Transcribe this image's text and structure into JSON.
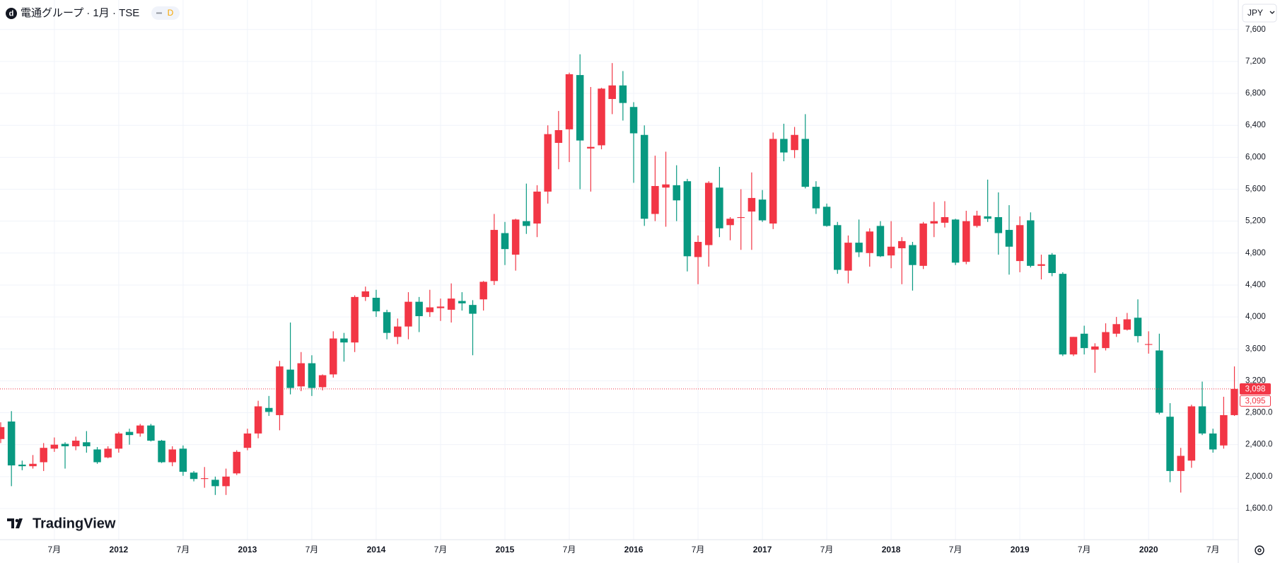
{
  "header": {
    "symbol": "電通グループ · 1月 · TSE",
    "badge": "D",
    "currency": "JPY"
  },
  "brand": "TradingView",
  "chart_data": {
    "type": "candlestick",
    "categories": [
      null,
      null,
      null,
      null,
      null,
      "7月",
      null,
      null,
      null,
      null,
      null,
      "2012",
      null,
      null,
      null,
      null,
      null,
      "7月",
      null,
      null,
      null,
      null,
      null,
      "2013",
      null,
      null,
      null,
      null,
      null,
      "7月",
      null,
      null,
      null,
      null,
      null,
      "2014",
      null,
      null,
      null,
      null,
      null,
      "7月",
      null,
      null,
      null,
      null,
      null,
      "2015",
      null,
      null,
      null,
      null,
      null,
      "7月",
      null,
      null,
      null,
      null,
      null,
      "2016",
      null,
      null,
      null,
      null,
      null,
      "7月",
      null,
      null,
      null,
      null,
      null,
      "2017",
      null,
      null,
      null,
      null,
      null,
      "7月",
      null,
      null,
      null,
      null,
      null,
      "2018",
      null,
      null,
      null,
      null,
      null,
      "7月",
      null,
      null,
      null,
      null,
      null,
      "2019",
      null,
      null,
      null,
      null,
      null,
      "7月",
      null,
      null,
      null,
      null,
      null,
      "2020",
      null,
      null,
      null,
      null,
      null,
      "7月",
      null,
      null
    ],
    "open": [
      2470,
      2690,
      2150,
      2130,
      2180,
      2350,
      2410,
      2380,
      2430,
      2340,
      2240,
      2350,
      2560,
      2540,
      2640,
      2450,
      2180,
      2350,
      2050,
      1970,
      1960,
      1880,
      2040,
      2360,
      2540,
      2860,
      2770,
      3340,
      3130,
      3420,
      3120,
      3280,
      3730,
      3680,
      4250,
      4240,
      4060,
      3750,
      3880,
      4190,
      4060,
      4110,
      4090,
      4200,
      4150,
      4220,
      4450,
      5050,
      4780,
      5200,
      5170,
      5570,
      6180,
      6350,
      7030,
      6110,
      6150,
      6730,
      6900,
      6630,
      6280,
      5290,
      5620,
      5650,
      5700,
      4750,
      4900,
      5620,
      5150,
      5240,
      5320,
      5470,
      5170,
      6230,
      6090,
      6230,
      5630,
      5380,
      5150,
      4580,
      4930,
      4800,
      5140,
      4770,
      4860,
      4900,
      4640,
      5170,
      5180,
      5220,
      4690,
      5140,
      5260,
      5250,
      5090,
      4700,
      5210,
      4640,
      4780,
      4540,
      3530,
      3790,
      3590,
      3610,
      3790,
      3840,
      3990,
      3650,
      3580,
      2750,
      2070,
      2200,
      2880,
      2540,
      2390,
      2770
    ],
    "high": [
      2680,
      2820,
      2200,
      2270,
      2420,
      2490,
      2430,
      2500,
      2570,
      2370,
      2380,
      2560,
      2600,
      2660,
      2660,
      2460,
      2380,
      2390,
      2070,
      2120,
      2000,
      2100,
      2330,
      2600,
      2950,
      3010,
      3450,
      3930,
      3560,
      3520,
      3280,
      3820,
      3800,
      4270,
      4380,
      4340,
      4090,
      3980,
      4310,
      4250,
      4340,
      4230,
      4420,
      4310,
      4210,
      4450,
      5290,
      5190,
      5230,
      5670,
      5650,
      6400,
      6580,
      7060,
      7290,
      6880,
      6870,
      7180,
      7080,
      6690,
      6400,
      6020,
      6070,
      5900,
      5730,
      5020,
      5700,
      5880,
      5250,
      5600,
      5810,
      5590,
      6310,
      6420,
      6380,
      6540,
      5700,
      5420,
      5190,
      5020,
      5220,
      5110,
      5200,
      5200,
      5000,
      4940,
      5190,
      5440,
      5450,
      5230,
      5330,
      5330,
      5720,
      5560,
      5400,
      5260,
      5310,
      4780,
      4800,
      4560,
      3750,
      3890,
      3670,
      3920,
      4000,
      4050,
      4220,
      3820,
      3790,
      2920,
      2360,
      2900,
      3190,
      2600,
      3000,
      3380
    ],
    "low": [
      2420,
      1880,
      2080,
      2100,
      2070,
      2310,
      2100,
      2330,
      2300,
      2160,
      2230,
      2300,
      2400,
      2500,
      2440,
      2170,
      2130,
      2010,
      1940,
      1860,
      1770,
      1770,
      2020,
      2330,
      2480,
      2760,
      2580,
      3030,
      3070,
      3010,
      3080,
      3240,
      3440,
      3560,
      4200,
      4000,
      3720,
      3660,
      3720,
      3810,
      4000,
      3950,
      3930,
      4080,
      3520,
      4080,
      4400,
      4650,
      4580,
      5040,
      5000,
      5420,
      5850,
      5940,
      5600,
      5570,
      6100,
      6540,
      6460,
      5680,
      5140,
      5200,
      5130,
      5200,
      4570,
      4410,
      4630,
      5000,
      4960,
      4840,
      4840,
      5190,
      5100,
      5950,
      5990,
      5610,
      5290,
      5130,
      4540,
      4420,
      4750,
      4630,
      4750,
      4610,
      4410,
      4330,
      4600,
      5000,
      5120,
      4650,
      4660,
      5120,
      5190,
      4780,
      4530,
      4560,
      4620,
      4470,
      4510,
      3510,
      3510,
      3530,
      3300,
      3580,
      3750,
      3830,
      3680,
      3540,
      2780,
      1930,
      1800,
      2110,
      2520,
      2300,
      2350,
      2760
    ],
    "close": [
      2620,
      2140,
      2130,
      2160,
      2360,
      2400,
      2380,
      2450,
      2380,
      2180,
      2350,
      2540,
      2520,
      2640,
      2450,
      2180,
      2340,
      2060,
      1970,
      1980,
      1880,
      2000,
      2310,
      2540,
      2880,
      2810,
      3380,
      3110,
      3420,
      3110,
      3270,
      3730,
      3680,
      4250,
      4320,
      4070,
      3800,
      3880,
      4190,
      4010,
      4120,
      4130,
      4230,
      4170,
      4040,
      4440,
      5090,
      4850,
      5220,
      5140,
      5570,
      6290,
      6340,
      7040,
      6210,
      6130,
      6860,
      6900,
      6680,
      6300,
      5230,
      5640,
      5660,
      5460,
      4760,
      4940,
      5680,
      5110,
      5230,
      5250,
      5490,
      5210,
      6230,
      6060,
      6280,
      5630,
      5360,
      5140,
      4590,
      4930,
      4810,
      5070,
      4760,
      4880,
      4950,
      4650,
      5170,
      5200,
      5250,
      4680,
      5200,
      5270,
      5230,
      5050,
      4880,
      5150,
      4640,
      4660,
      4550,
      3530,
      3750,
      3610,
      3630,
      3810,
      3910,
      3970,
      3760,
      3660,
      2800,
      2070,
      2260,
      2880,
      2540,
      2340,
      2770,
      3098
    ],
    "up_color": "#f23645",
    "down_color": "#089981",
    "ylim": [
      1210,
      7970
    ],
    "yticks": [
      {
        "value": 7600,
        "label": "7,600"
      },
      {
        "value": 7200,
        "label": "7,200"
      },
      {
        "value": 6800,
        "label": "6,800"
      },
      {
        "value": 6400,
        "label": "6,400"
      },
      {
        "value": 6000,
        "label": "6,000"
      },
      {
        "value": 5600,
        "label": "5,600"
      },
      {
        "value": 5200,
        "label": "5,200"
      },
      {
        "value": 4800,
        "label": "4,800"
      },
      {
        "value": 4400,
        "label": "4,400"
      },
      {
        "value": 4000,
        "label": "4,000"
      },
      {
        "value": 3600,
        "label": "3,600"
      },
      {
        "value": 3200,
        "label": "3,200"
      },
      {
        "value": 2800,
        "label": "2,800.0"
      },
      {
        "value": 2400,
        "label": "2,400.0"
      },
      {
        "value": 2000,
        "label": "2,000.0"
      },
      {
        "value": 1600,
        "label": "1,600.0"
      }
    ],
    "grid": true,
    "price_labels": [
      {
        "value": 3098,
        "label": "3,098"
      },
      {
        "value": 3095,
        "label": "3,095"
      }
    ]
  }
}
